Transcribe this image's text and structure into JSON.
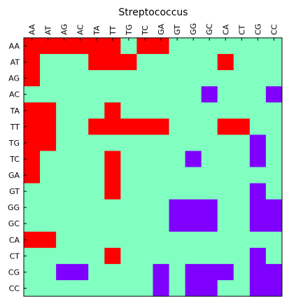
{
  "chart_data": {
    "type": "heatmap",
    "title": "Streptococcus",
    "x_labels": [
      "AA",
      "AT",
      "AG",
      "AC",
      "TA",
      "TT",
      "TG",
      "TC",
      "GA",
      "GT",
      "GG",
      "GC",
      "CA",
      "CT",
      "CG",
      "CC"
    ],
    "y_labels": [
      "AA",
      "AT",
      "AG",
      "AC",
      "TA",
      "TT",
      "TG",
      "TC",
      "GA",
      "GT",
      "GG",
      "GC",
      "CA",
      "CT",
      "CG",
      "CC"
    ],
    "x_axis_position": "top",
    "grid": false,
    "legend": "none",
    "values": [
      [
        2,
        2,
        2,
        2,
        2,
        2,
        1,
        2,
        2,
        1,
        1,
        1,
        1,
        1,
        1,
        1
      ],
      [
        2,
        1,
        1,
        1,
        2,
        2,
        2,
        1,
        1,
        1,
        1,
        1,
        2,
        1,
        1,
        1
      ],
      [
        2,
        1,
        1,
        1,
        1,
        1,
        1,
        1,
        1,
        1,
        1,
        1,
        1,
        1,
        1,
        1
      ],
      [
        1,
        1,
        1,
        1,
        1,
        1,
        1,
        1,
        1,
        1,
        1,
        0,
        1,
        1,
        1,
        0
      ],
      [
        2,
        2,
        1,
        1,
        1,
        2,
        1,
        1,
        1,
        1,
        1,
        1,
        1,
        1,
        1,
        1
      ],
      [
        2,
        2,
        1,
        1,
        2,
        2,
        2,
        2,
        2,
        1,
        1,
        1,
        2,
        2,
        1,
        1
      ],
      [
        2,
        2,
        1,
        1,
        1,
        1,
        1,
        1,
        1,
        1,
        1,
        1,
        1,
        1,
        0,
        1
      ],
      [
        2,
        1,
        1,
        1,
        1,
        2,
        1,
        1,
        1,
        1,
        0,
        1,
        1,
        1,
        0,
        1
      ],
      [
        2,
        1,
        1,
        1,
        1,
        2,
        1,
        1,
        1,
        1,
        1,
        1,
        1,
        1,
        1,
        1
      ],
      [
        1,
        1,
        1,
        1,
        1,
        2,
        1,
        1,
        1,
        1,
        1,
        1,
        1,
        1,
        0,
        1
      ],
      [
        1,
        1,
        1,
        1,
        1,
        1,
        1,
        1,
        1,
        0,
        0,
        0,
        1,
        1,
        0,
        0
      ],
      [
        1,
        1,
        1,
        1,
        1,
        1,
        1,
        1,
        1,
        0,
        0,
        0,
        1,
        1,
        0,
        0
      ],
      [
        2,
        2,
        1,
        1,
        1,
        1,
        1,
        1,
        1,
        1,
        1,
        1,
        1,
        1,
        1,
        1
      ],
      [
        1,
        1,
        1,
        1,
        1,
        2,
        1,
        1,
        1,
        1,
        1,
        1,
        1,
        1,
        0,
        1
      ],
      [
        1,
        1,
        0,
        0,
        1,
        1,
        1,
        1,
        0,
        1,
        0,
        0,
        0,
        1,
        0,
        0
      ],
      [
        1,
        1,
        1,
        1,
        1,
        1,
        1,
        1,
        0,
        1,
        0,
        0,
        1,
        1,
        0,
        0
      ]
    ],
    "value_levels": {
      "0": "#7f00ff",
      "1": "#80ffc0",
      "2": "#ff0000"
    }
  }
}
